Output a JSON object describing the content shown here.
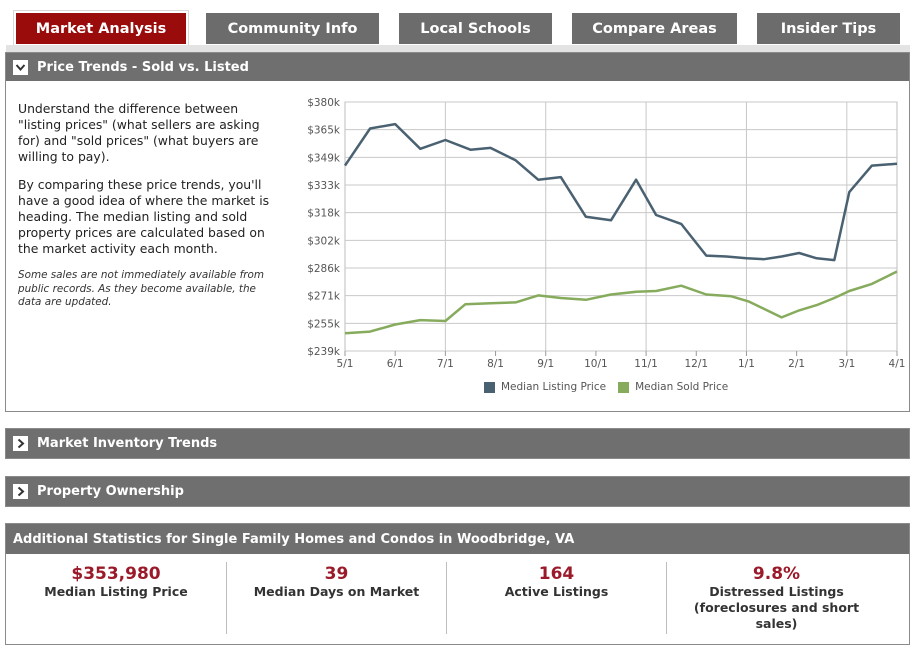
{
  "tabs": [
    {
      "label": "Market Analysis",
      "active": true
    },
    {
      "label": "Community Info",
      "active": false
    },
    {
      "label": "Local Schools",
      "active": false
    },
    {
      "label": "Compare Areas",
      "active": false
    },
    {
      "label": "Insider Tips",
      "active": false
    }
  ],
  "price_trends": {
    "header": "Price Trends - Sold vs. Listed",
    "paragraph1": "Understand the difference between \"listing prices\" (what sellers are asking for) and \"sold prices\" (what buyers are willing to pay).",
    "paragraph2": "By comparing these price trends, you'll have a good idea of where the market is heading. The median listing and sold property prices are calculated based on the market activity each month.",
    "note": "Some sales are not immediately available from public records. As they become available, the data are updated."
  },
  "chart_data": {
    "type": "line",
    "title": "",
    "xlabel": "",
    "ylabel": "",
    "x_ticks": [
      "5/1",
      "6/1",
      "7/1",
      "8/1",
      "9/1",
      "10/1",
      "11/1",
      "12/1",
      "1/1",
      "2/1",
      "3/1",
      "4/1"
    ],
    "y_ticks": [
      "$380k",
      "$365k",
      "$349k",
      "$333k",
      "$318k",
      "$302k",
      "$286k",
      "$271k",
      "$255k",
      "$239k"
    ],
    "ylim": [
      239,
      380
    ],
    "xlim": [
      0,
      11
    ],
    "grid": true,
    "legend_position": "bottom",
    "series": [
      {
        "name": "Median Listing Price",
        "color": "#4a6172",
        "points": [
          [
            0,
            344
          ],
          [
            0.5,
            365
          ],
          [
            1,
            367.5
          ],
          [
            1.5,
            353.5
          ],
          [
            2,
            358.5
          ],
          [
            2.5,
            353
          ],
          [
            2.9,
            354
          ],
          [
            3.4,
            347
          ],
          [
            3.85,
            336
          ],
          [
            4.3,
            337.5
          ],
          [
            4.8,
            315
          ],
          [
            5.3,
            313
          ],
          [
            5.8,
            336
          ],
          [
            6.2,
            316
          ],
          [
            6.7,
            311
          ],
          [
            7.2,
            293
          ],
          [
            7.6,
            292.5
          ],
          [
            8.0,
            291.5
          ],
          [
            8.35,
            291
          ],
          [
            8.7,
            292.5
          ],
          [
            9.05,
            294.5
          ],
          [
            9.4,
            291.5
          ],
          [
            9.75,
            290.5
          ],
          [
            10.05,
            329
          ],
          [
            10.5,
            344
          ],
          [
            11,
            345
          ]
        ]
      },
      {
        "name": "Median Sold Price",
        "color": "#86ab5c",
        "points": [
          [
            0,
            249
          ],
          [
            0.5,
            250
          ],
          [
            1,
            254
          ],
          [
            1.5,
            256.5
          ],
          [
            2,
            256
          ],
          [
            2.4,
            265.5
          ],
          [
            2.9,
            266
          ],
          [
            3.4,
            266.5
          ],
          [
            3.85,
            270.5
          ],
          [
            4.3,
            269
          ],
          [
            4.8,
            268
          ],
          [
            5.3,
            271
          ],
          [
            5.8,
            272.5
          ],
          [
            6.2,
            273
          ],
          [
            6.7,
            276
          ],
          [
            7.2,
            271
          ],
          [
            7.7,
            270
          ],
          [
            8.05,
            267
          ],
          [
            8.7,
            258
          ],
          [
            9.05,
            262
          ],
          [
            9.4,
            265
          ],
          [
            9.75,
            269
          ],
          [
            10.05,
            273
          ],
          [
            10.5,
            277
          ],
          [
            11,
            284
          ]
        ]
      }
    ]
  },
  "collapsed_panels": {
    "inventory": "Market Inventory Trends",
    "ownership": "Property Ownership"
  },
  "stats": {
    "header": "Additional Statistics for Single Family Homes and Condos in Woodbridge, VA",
    "items": [
      {
        "value": "$353,980",
        "label": "Median Listing Price"
      },
      {
        "value": "39",
        "label": "Median Days on Market"
      },
      {
        "value": "164",
        "label": "Active Listings"
      },
      {
        "value": "9.8%",
        "label": "Distressed Listings (foreclosures and short sales)"
      }
    ]
  },
  "icons": {
    "expanded": "chevron-down-icon",
    "collapsed": "chevron-right-icon"
  }
}
